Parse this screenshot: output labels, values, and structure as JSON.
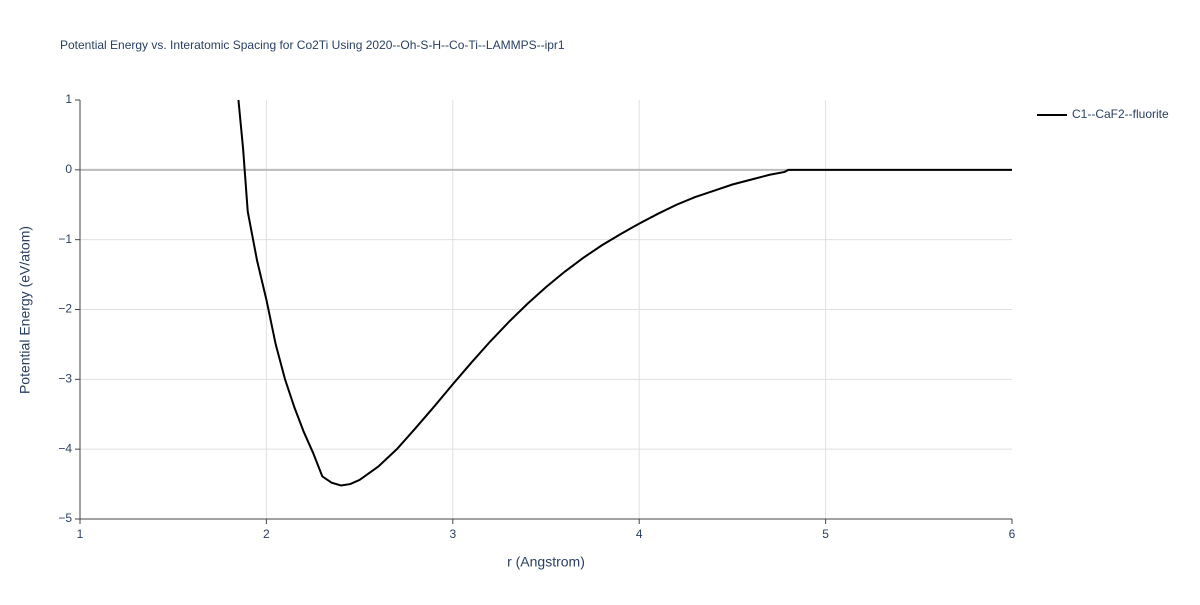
{
  "chart_data": {
    "type": "line",
    "title": "Potential Energy vs. Interatomic Spacing for Co2Ti Using 2020--Oh-S-H--Co-Ti--LAMMPS--ipr1",
    "x_label": "r (Angstrom)",
    "y_label": "Potential Energy (eV/atom)",
    "xlim": [
      1,
      6
    ],
    "ylim": [
      -5,
      1
    ],
    "xticks": [
      1,
      2,
      3,
      4,
      5,
      6
    ],
    "yticks": [
      {
        "value": -5,
        "label": "−5"
      },
      {
        "value": -4,
        "label": "−4"
      },
      {
        "value": -3,
        "label": "−3"
      },
      {
        "value": -2,
        "label": "−2"
      },
      {
        "value": -1,
        "label": "−1"
      },
      0,
      1
    ],
    "grid": true,
    "legend": "top-right",
    "series": [
      {
        "name": "C1--CaF2--fluorite",
        "color": "#000000",
        "x": [
          1.85,
          1.875,
          1.9,
          1.95,
          2.0,
          2.05,
          2.1,
          2.15,
          2.2,
          2.25,
          2.3,
          2.35,
          2.4,
          2.45,
          2.5,
          2.6,
          2.7,
          2.8,
          2.9,
          3.0,
          3.1,
          3.2,
          3.3,
          3.4,
          3.5,
          3.6,
          3.7,
          3.8,
          3.9,
          4.0,
          4.1,
          4.2,
          4.3,
          4.4,
          4.5,
          4.6,
          4.7,
          4.78,
          4.8,
          5.0,
          5.5,
          6.0
        ],
        "values": [
          1.0,
          0.3,
          -0.6,
          -1.3,
          -1.86,
          -2.5,
          -3.0,
          -3.4,
          -3.75,
          -4.05,
          -4.39,
          -4.48,
          -4.52,
          -4.5,
          -4.44,
          -4.25,
          -4.0,
          -3.7,
          -3.39,
          -3.07,
          -2.76,
          -2.46,
          -2.18,
          -1.92,
          -1.68,
          -1.46,
          -1.26,
          -1.08,
          -0.92,
          -0.77,
          -0.63,
          -0.5,
          -0.39,
          -0.3,
          -0.21,
          -0.14,
          -0.07,
          -0.03,
          0,
          0,
          0,
          0
        ]
      }
    ]
  }
}
